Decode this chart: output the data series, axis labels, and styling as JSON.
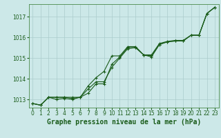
{
  "title": "Graphe pression niveau de la mer (hPa)",
  "bg_color": "#cce8e8",
  "grid_color": "#aacccc",
  "line_color": "#1a5c1a",
  "spine_color": "#4a8a4a",
  "xlim": [
    -0.5,
    23.5
  ],
  "ylim": [
    1012.6,
    1017.6
  ],
  "yticks": [
    1013,
    1014,
    1015,
    1016,
    1017
  ],
  "xticks": [
    0,
    1,
    2,
    3,
    4,
    5,
    6,
    7,
    8,
    9,
    10,
    11,
    12,
    13,
    14,
    15,
    16,
    17,
    18,
    19,
    20,
    21,
    22,
    23
  ],
  "series1": [
    1012.8,
    1012.72,
    1013.1,
    1013.1,
    1013.1,
    1013.1,
    1013.1,
    1013.65,
    1014.05,
    1014.35,
    1015.1,
    1015.1,
    1015.55,
    1015.55,
    1015.15,
    1015.15,
    1015.7,
    1015.8,
    1015.85,
    1015.85,
    1016.1,
    1016.1,
    1017.15,
    1017.45
  ],
  "series2": [
    1012.8,
    1012.72,
    1013.1,
    1013.1,
    1013.1,
    1013.05,
    1013.1,
    1013.3,
    1013.75,
    1013.75,
    1014.7,
    1015.05,
    1015.5,
    1015.5,
    1015.15,
    1015.1,
    1015.65,
    1015.78,
    1015.82,
    1015.82,
    1016.1,
    1016.1,
    1017.15,
    1017.45
  ],
  "series3": [
    1012.8,
    1012.72,
    1013.1,
    1013.0,
    1013.05,
    1013.0,
    1013.1,
    1013.5,
    1013.85,
    1013.85,
    1014.55,
    1015.0,
    1015.45,
    1015.5,
    1015.15,
    1015.05,
    1015.65,
    1015.78,
    1015.82,
    1015.82,
    1016.1,
    1016.1,
    1017.15,
    1017.45
  ],
  "ylabel_fontsize": 6,
  "xlabel_fontsize": 7,
  "tick_fontsize": 5.5
}
